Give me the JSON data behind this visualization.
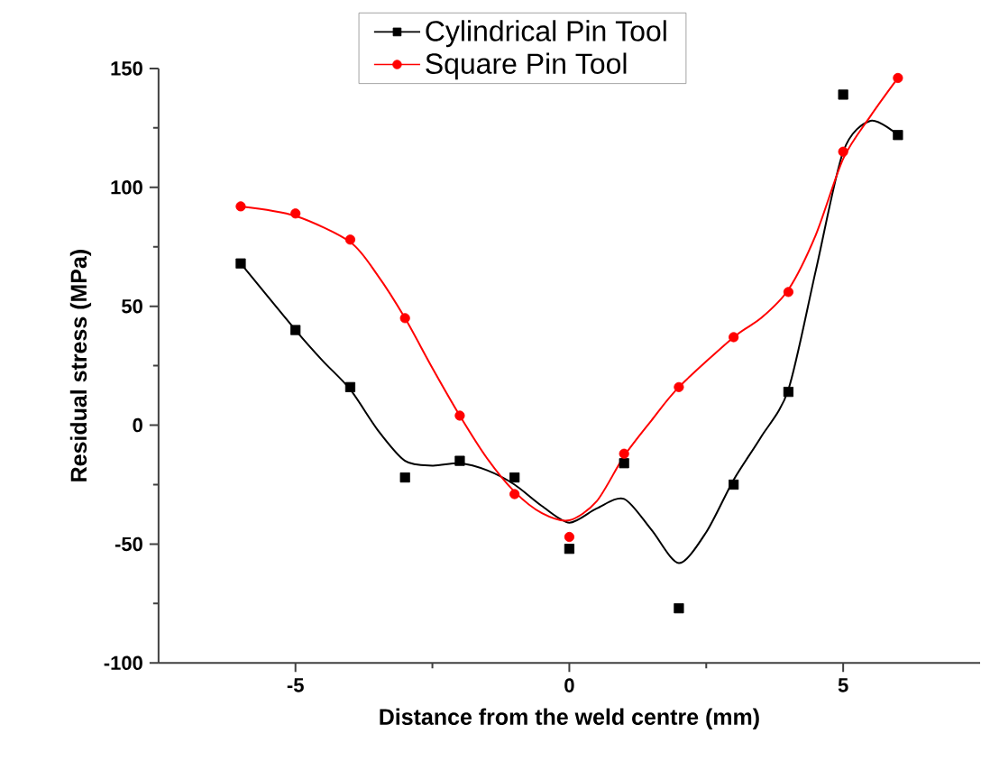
{
  "chart_data": {
    "type": "line",
    "xlabel": "Distance from the weld centre (mm)",
    "ylabel": "Residual stress (MPa)",
    "xlim": [
      -7.5,
      7.5
    ],
    "xticks": [
      -5,
      0,
      5
    ],
    "ylim": [
      -100,
      150
    ],
    "yticks": [
      -100,
      -50,
      0,
      50,
      100,
      150
    ],
    "legend": "top",
    "grid": false,
    "line_style": "solid",
    "series": [
      {
        "color": "#000000",
        "marker": "none",
        "x": [
          -6,
          -5,
          -4.5,
          -4,
          -3.5,
          -3,
          -2.5,
          -2,
          -1.5,
          -1,
          -0.5,
          0,
          0.5,
          1,
          1.5,
          2,
          2.5,
          3,
          3.5,
          4,
          4.5,
          5,
          5.5,
          6
        ],
        "values": [
          68,
          40,
          27,
          15,
          -2,
          -15,
          -17,
          -16,
          -19,
          -25,
          -34,
          -41,
          -35,
          -31,
          -44,
          -58,
          -45,
          -23,
          -5,
          15,
          65,
          115,
          128,
          122
        ]
      },
      {
        "color": "#ff0000",
        "marker": "none",
        "x": [
          -6,
          -5,
          -4,
          -3.5,
          -3,
          -2.5,
          -2,
          -1.5,
          -1,
          -0.5,
          0,
          0.5,
          1,
          1.5,
          2,
          3,
          3.5,
          4,
          4.5,
          5,
          5.5,
          6
        ],
        "values": [
          92,
          88,
          77,
          63,
          45,
          24,
          4,
          -14,
          -28,
          -37,
          -40,
          -32,
          -13,
          2,
          16,
          37,
          45,
          57,
          80,
          112,
          130,
          146
        ]
      },
      {
        "type": "scatter",
        "name": "Cylindrical Pin Tool",
        "color": "#000000",
        "marker": "square",
        "x": [
          -6,
          -5,
          -4,
          -3,
          -2,
          -1,
          0,
          1,
          2,
          3,
          4,
          5,
          6
        ],
        "values": [
          68,
          40,
          16,
          -22,
          -15,
          -22,
          -52,
          -16,
          -77,
          -25,
          14,
          139,
          122
        ]
      },
      {
        "type": "scatter",
        "name": "Square Pin Tool",
        "color": "#ff0000",
        "marker": "circle",
        "x": [
          -6,
          -5,
          -4,
          -3,
          -2,
          -1,
          0,
          1,
          2,
          3,
          4,
          5,
          6
        ],
        "values": [
          92,
          89,
          78,
          45,
          4,
          -29,
          -47,
          -12,
          16,
          37,
          56,
          115,
          146
        ]
      }
    ]
  }
}
